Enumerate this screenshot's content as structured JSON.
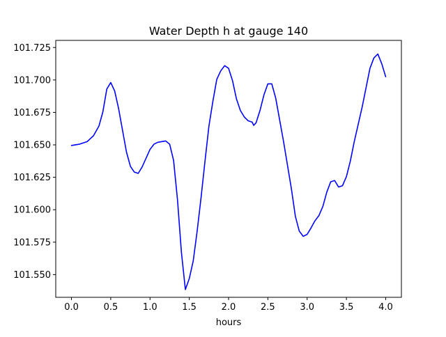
{
  "chart_data": {
    "type": "line",
    "title": "Water Depth h at gauge 140",
    "xlabel": "hours",
    "ylabel": "",
    "xlim": [
      -0.2,
      4.2
    ],
    "ylim": [
      101.5325,
      101.7305
    ],
    "xticks": [
      0.0,
      0.5,
      1.0,
      1.5,
      2.0,
      2.5,
      3.0,
      3.5,
      4.0
    ],
    "xtick_labels": [
      "0.0",
      "0.5",
      "1.0",
      "1.5",
      "2.0",
      "2.5",
      "3.0",
      "3.5",
      "4.0"
    ],
    "yticks": [
      101.55,
      101.575,
      101.6,
      101.625,
      101.65,
      101.675,
      101.7,
      101.725
    ],
    "ytick_labels": [
      "101.550",
      "101.575",
      "101.600",
      "101.625",
      "101.650",
      "101.675",
      "101.700",
      "101.725"
    ],
    "grid": false,
    "series": [
      {
        "color": "#0000ff",
        "x": [
          0.0,
          0.1,
          0.2,
          0.28,
          0.35,
          0.4,
          0.45,
          0.5,
          0.55,
          0.6,
          0.7,
          0.75,
          0.8,
          0.85,
          0.9,
          1.0,
          1.05,
          1.1,
          1.2,
          1.25,
          1.3,
          1.35,
          1.4,
          1.45,
          1.5,
          1.55,
          1.6,
          1.65,
          1.7,
          1.75,
          1.8,
          1.85,
          1.9,
          1.95,
          2.0,
          2.05,
          2.1,
          2.15,
          2.2,
          2.25,
          2.3,
          2.32,
          2.35,
          2.4,
          2.45,
          2.5,
          2.55,
          2.6,
          2.7,
          2.8,
          2.85,
          2.9,
          2.95,
          3.0,
          3.05,
          3.1,
          3.15,
          3.2,
          3.25,
          3.3,
          3.35,
          3.4,
          3.45,
          3.5,
          3.55,
          3.6,
          3.7,
          3.8,
          3.85,
          3.9,
          3.95,
          4.0
        ],
        "y": [
          101.6495,
          101.6505,
          101.6525,
          101.657,
          101.6645,
          101.6755,
          101.693,
          101.698,
          101.6915,
          101.678,
          101.6445,
          101.6335,
          101.629,
          101.628,
          101.633,
          101.6465,
          101.6505,
          101.652,
          101.653,
          101.6505,
          101.638,
          101.6075,
          101.567,
          101.5385,
          101.547,
          101.5605,
          101.5835,
          101.6095,
          101.6375,
          101.6645,
          101.6835,
          101.7005,
          101.707,
          101.711,
          101.709,
          101.6995,
          101.6855,
          101.6765,
          101.6715,
          101.6685,
          101.6675,
          101.665,
          101.667,
          101.6765,
          101.6885,
          101.697,
          101.697,
          101.686,
          101.6525,
          101.616,
          101.595,
          101.5835,
          101.5795,
          101.581,
          101.586,
          101.5915,
          101.5955,
          101.6025,
          101.6135,
          101.6215,
          101.6225,
          101.6175,
          101.6185,
          101.6255,
          101.6375,
          101.6525,
          101.679,
          101.709,
          101.717,
          101.72,
          101.7125,
          101.7025
        ]
      }
    ]
  }
}
